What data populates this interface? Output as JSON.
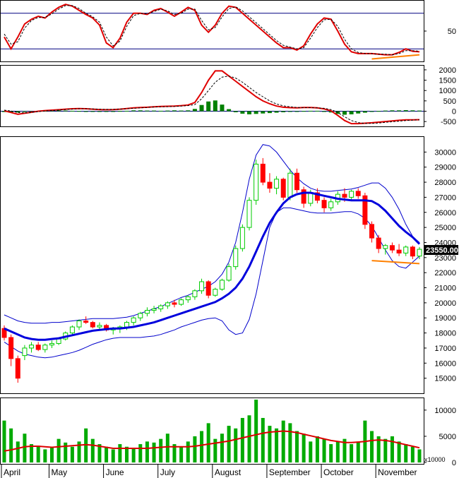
{
  "chart_data": [
    {
      "type": "line",
      "panel": "stochastic",
      "yrange": [
        0,
        100
      ],
      "reference_lines": [
        20,
        80
      ],
      "tick_labels": [
        "50"
      ],
      "series": [
        {
          "color": "#e00000",
          "style": "solid",
          "values": [
            40,
            20,
            40,
            62,
            70,
            75,
            72,
            82,
            90,
            95,
            92,
            85,
            78,
            72,
            60,
            30,
            22,
            38,
            65,
            80,
            80,
            78,
            85,
            88,
            82,
            75,
            82,
            90,
            85,
            60,
            48,
            60,
            80,
            92,
            90,
            80,
            70,
            60,
            50,
            40,
            30,
            22,
            22,
            18,
            25,
            45,
            62,
            72,
            70,
            50,
            28,
            15,
            12,
            12,
            12,
            11,
            10,
            10,
            14,
            20,
            16,
            15
          ]
        },
        {
          "color": "#000000",
          "style": "dashed",
          "values": [
            45,
            28,
            32,
            55,
            68,
            73,
            73,
            79,
            87,
            93,
            93,
            88,
            80,
            74,
            65,
            40,
            25,
            33,
            58,
            76,
            80,
            79,
            83,
            87,
            84,
            78,
            80,
            87,
            87,
            68,
            52,
            56,
            74,
            88,
            91,
            84,
            74,
            64,
            54,
            44,
            34,
            26,
            23,
            20,
            22,
            38,
            56,
            69,
            70,
            58,
            36,
            20,
            14,
            12,
            12,
            11,
            11,
            10,
            12,
            17,
            17,
            16
          ]
        }
      ],
      "annotations": [
        {
          "type": "divergence-line",
          "color": "#ff8000",
          "x": [
            54,
            61
          ],
          "y": [
            3,
            10
          ]
        }
      ]
    },
    {
      "type": "bar",
      "panel": "macd",
      "yrange": [
        -700,
        2100
      ],
      "tick_labels": [
        "2000",
        "1500",
        "1000",
        "500",
        "0",
        "-500"
      ],
      "histogram_colors": {
        "positive": "#008000",
        "negative": "#008000"
      },
      "histogram": [
        -40,
        -70,
        -60,
        -30,
        -10,
        10,
        20,
        30,
        40,
        30,
        20,
        10,
        0,
        -10,
        -20,
        -10,
        0,
        10,
        20,
        40,
        40,
        30,
        30,
        20,
        30,
        40,
        30,
        40,
        110,
        300,
        470,
        520,
        320,
        100,
        -50,
        -120,
        -150,
        -130,
        -110,
        -90,
        -70,
        -50,
        -30,
        -20,
        10,
        20,
        20,
        0,
        -60,
        -130,
        -170,
        -150,
        -110,
        -70,
        -30,
        10,
        30,
        40,
        40,
        50,
        40,
        30
      ],
      "series": [
        {
          "color": "#e00000",
          "style": "solid",
          "values": [
            20,
            -60,
            -150,
            -100,
            -50,
            0,
            30,
            50,
            70,
            100,
            120,
            130,
            120,
            100,
            80,
            70,
            80,
            100,
            130,
            160,
            180,
            190,
            210,
            230,
            240,
            250,
            270,
            300,
            420,
            900,
            1500,
            1950,
            1950,
            1700,
            1450,
            1200,
            950,
            700,
            500,
            360,
            250,
            190,
            170,
            160,
            180,
            180,
            160,
            110,
            20,
            -200,
            -450,
            -600,
            -600,
            -580,
            -560,
            -530,
            -500,
            -470,
            -440,
            -420,
            -420,
            -410
          ]
        },
        {
          "color": "#000000",
          "style": "dashed",
          "values": [
            50,
            10,
            -60,
            -80,
            -60,
            -20,
            10,
            30,
            50,
            80,
            100,
            120,
            120,
            110,
            100,
            90,
            90,
            100,
            120,
            140,
            160,
            180,
            200,
            210,
            220,
            230,
            250,
            270,
            320,
            600,
            1000,
            1400,
            1650,
            1700,
            1600,
            1400,
            1150,
            900,
            700,
            500,
            350,
            260,
            210,
            180,
            170,
            170,
            160,
            140,
            80,
            -60,
            -270,
            -450,
            -550,
            -590,
            -590,
            -570,
            -540,
            -510,
            -480,
            -450,
            -430,
            -420
          ]
        }
      ]
    },
    {
      "type": "candlestick",
      "panel": "price",
      "yrange": [
        14000,
        31000
      ],
      "tick_labels": [
        "30000",
        "29000",
        "28000",
        "27000",
        "26000",
        "25000",
        "24000",
        "23000",
        "22000",
        "21000",
        "20000",
        "19000",
        "18000",
        "17000",
        "16000",
        "15000"
      ],
      "last_price": "23550.00",
      "up_color": "#00cc00",
      "down_color": "#ff0000",
      "candles": [
        [
          18300,
          18500,
          17500,
          17700
        ],
        [
          17700,
          17900,
          15800,
          16300
        ],
        [
          16300,
          16500,
          14700,
          15000
        ],
        [
          16500,
          17200,
          16200,
          17000
        ],
        [
          17000,
          17400,
          16700,
          17200
        ],
        [
          17200,
          17400,
          16800,
          16900
        ],
        [
          16900,
          17300,
          16700,
          17200
        ],
        [
          17200,
          17500,
          17000,
          17300
        ],
        [
          17300,
          17700,
          17200,
          17600
        ],
        [
          17600,
          18100,
          17500,
          18000
        ],
        [
          18000,
          18500,
          17800,
          18400
        ],
        [
          18400,
          18900,
          18200,
          18800
        ],
        [
          18800,
          19100,
          18600,
          18700
        ],
        [
          18700,
          18800,
          18300,
          18400
        ],
        [
          18400,
          18700,
          18200,
          18500
        ],
        [
          18500,
          18600,
          18100,
          18200
        ],
        [
          18200,
          18400,
          17900,
          18300
        ],
        [
          18300,
          18500,
          18000,
          18400
        ],
        [
          18400,
          18800,
          18200,
          18700
        ],
        [
          18700,
          19100,
          18500,
          19000
        ],
        [
          19000,
          19400,
          18800,
          19300
        ],
        [
          19300,
          19700,
          19100,
          19500
        ],
        [
          19500,
          19800,
          19300,
          19600
        ],
        [
          19600,
          19900,
          19400,
          19800
        ],
        [
          19800,
          20100,
          19600,
          20000
        ],
        [
          20000,
          20200,
          19700,
          19900
        ],
        [
          19900,
          20300,
          19800,
          20200
        ],
        [
          20200,
          20500,
          20000,
          20400
        ],
        [
          20400,
          20900,
          20200,
          20800
        ],
        [
          20800,
          21600,
          20600,
          21400
        ],
        [
          21400,
          21500,
          20300,
          20500
        ],
        [
          20500,
          21000,
          20400,
          20900
        ],
        [
          20900,
          21600,
          20800,
          21500
        ],
        [
          21500,
          22600,
          21400,
          22400
        ],
        [
          22400,
          23800,
          22200,
          23600
        ],
        [
          23600,
          25200,
          23400,
          25000
        ],
        [
          25000,
          27000,
          24800,
          26800
        ],
        [
          26800,
          29500,
          26500,
          29200
        ],
        [
          29200,
          29600,
          27800,
          28000
        ],
        [
          28000,
          28600,
          27300,
          27600
        ],
        [
          27600,
          28400,
          27200,
          28200
        ],
        [
          28200,
          28300,
          26800,
          27000
        ],
        [
          27000,
          28900,
          26800,
          28600
        ],
        [
          28600,
          28900,
          27300,
          27500
        ],
        [
          27500,
          27700,
          26300,
          26600
        ],
        [
          26600,
          27500,
          26400,
          27300
        ],
        [
          27300,
          27600,
          26600,
          26800
        ],
        [
          26800,
          27000,
          26000,
          26300
        ],
        [
          26300,
          26900,
          26100,
          26700
        ],
        [
          26700,
          27400,
          26500,
          27200
        ],
        [
          27200,
          27600,
          26700,
          27000
        ],
        [
          27000,
          27500,
          26800,
          27400
        ],
        [
          27400,
          27600,
          26900,
          27100
        ],
        [
          27100,
          27300,
          24900,
          25200
        ],
        [
          25200,
          25400,
          24000,
          24300
        ],
        [
          24300,
          24500,
          23300,
          23600
        ],
        [
          23600,
          23900,
          23200,
          23800
        ],
        [
          23800,
          24000,
          23300,
          23500
        ],
        [
          23500,
          23900,
          23100,
          23300
        ],
        [
          23300,
          23800,
          23100,
          23700
        ],
        [
          23700,
          23800,
          22900,
          23100
        ],
        [
          23100,
          23700,
          22900,
          23550
        ]
      ],
      "ma_series": {
        "color": "#0000dd",
        "values": [
          18300,
          18100,
          17900,
          17700,
          17600,
          17550,
          17550,
          17600,
          17650,
          17750,
          17850,
          17950,
          18050,
          18150,
          18200,
          18250,
          18300,
          18300,
          18350,
          18400,
          18500,
          18600,
          18700,
          18850,
          19000,
          19150,
          19300,
          19450,
          19600,
          19750,
          19900,
          20050,
          20300,
          20600,
          21000,
          21600,
          22400,
          23400,
          24400,
          25300,
          26000,
          26600,
          27000,
          27200,
          27300,
          27300,
          27200,
          27100,
          27000,
          26900,
          26850,
          26800,
          26800,
          26800,
          26750,
          26500,
          26100,
          25600,
          25100,
          24700,
          24350,
          23900
        ]
      },
      "bollinger_upper": {
        "color": "#0000cc",
        "values": [
          19200,
          19000,
          18800,
          18700,
          18650,
          18650,
          18650,
          18700,
          18700,
          18750,
          18800,
          18850,
          18900,
          18950,
          18950,
          18950,
          18950,
          19000,
          19050,
          19150,
          19300,
          19450,
          19600,
          19750,
          19950,
          20150,
          20350,
          20500,
          20700,
          20900,
          21100,
          21400,
          21900,
          22700,
          24000,
          26000,
          28200,
          29800,
          30500,
          30400,
          30000,
          29400,
          28800,
          28300,
          27900,
          27600,
          27450,
          27400,
          27400,
          27450,
          27500,
          27550,
          27650,
          27800,
          27950,
          27950,
          27600,
          27000,
          26200,
          25200,
          24400,
          24000
        ]
      },
      "bollinger_lower": {
        "color": "#0000cc",
        "values": [
          17400,
          17100,
          16800,
          16600,
          16500,
          16400,
          16350,
          16400,
          16500,
          16600,
          16700,
          16850,
          17050,
          17250,
          17400,
          17550,
          17650,
          17700,
          17700,
          17700,
          17700,
          17750,
          17800,
          17900,
          18050,
          18200,
          18400,
          18550,
          18700,
          18850,
          18950,
          19000,
          18800,
          18200,
          17900,
          18000,
          18900,
          20600,
          22800,
          25000,
          26000,
          26300,
          26300,
          26200,
          26100,
          26000,
          25950,
          25950,
          25950,
          26000,
          26050,
          26050,
          25900,
          25600,
          25100,
          24300,
          23500,
          22800,
          22400,
          22300,
          22700,
          23100
        ]
      },
      "annotations": [
        {
          "type": "support-line",
          "color": "#ff8000",
          "x": [
            54,
            61
          ],
          "y": [
            22800,
            22600
          ]
        }
      ]
    },
    {
      "type": "bar",
      "panel": "volume",
      "unit": "x10000",
      "yrange": [
        0,
        12000
      ],
      "tick_labels": [
        "10000",
        "5000",
        "0"
      ],
      "bar_color": "#00aa00",
      "volumes": [
        8000,
        6500,
        4000,
        5500,
        3500,
        3200,
        2500,
        3000,
        4500,
        3800,
        3000,
        4000,
        6500,
        4500,
        3500,
        3000,
        2500,
        3500,
        3000,
        2800,
        3500,
        4000,
        3800,
        4500,
        5500,
        3500,
        3000,
        4000,
        5000,
        6000,
        7500,
        4500,
        5500,
        7000,
        6500,
        8500,
        9000,
        12000,
        8500,
        7000,
        6500,
        8000,
        7500,
        6000,
        5500,
        4000,
        5000,
        4500,
        3500,
        4000,
        4500,
        3500,
        4000,
        8000,
        6000,
        5000,
        4500,
        5000,
        4000,
        3500,
        3000,
        2500
      ],
      "ma_series": {
        "color": "#dd0000",
        "values": [
          2200,
          2400,
          2700,
          3000,
          3100,
          3100,
          3000,
          2900,
          3000,
          3100,
          3200,
          3300,
          3400,
          3300,
          3100,
          2900,
          2700,
          2700,
          2700,
          2700,
          2700,
          2700,
          2800,
          2900,
          3000,
          3000,
          3000,
          3000,
          3100,
          3300,
          3500,
          3700,
          3900,
          4100,
          4400,
          4700,
          5000,
          5300,
          5600,
          5800,
          5900,
          6000,
          5900,
          5700,
          5400,
          5100,
          4800,
          4500,
          4200,
          4000,
          3800,
          3800,
          3900,
          4000,
          4200,
          4300,
          4200,
          4000,
          3700,
          3400,
          3100,
          2800
        ]
      }
    }
  ],
  "x_axis": {
    "months": [
      {
        "label": "April",
        "index": 0
      },
      {
        "label": "May",
        "index": 7
      },
      {
        "label": "June",
        "index": 15
      },
      {
        "label": "July",
        "index": 23
      },
      {
        "label": "August",
        "index": 31
      },
      {
        "label": "September",
        "index": 39
      },
      {
        "label": "October",
        "index": 47
      },
      {
        "label": "November",
        "index": 55
      }
    ],
    "volume_unit_label": "x10000"
  }
}
